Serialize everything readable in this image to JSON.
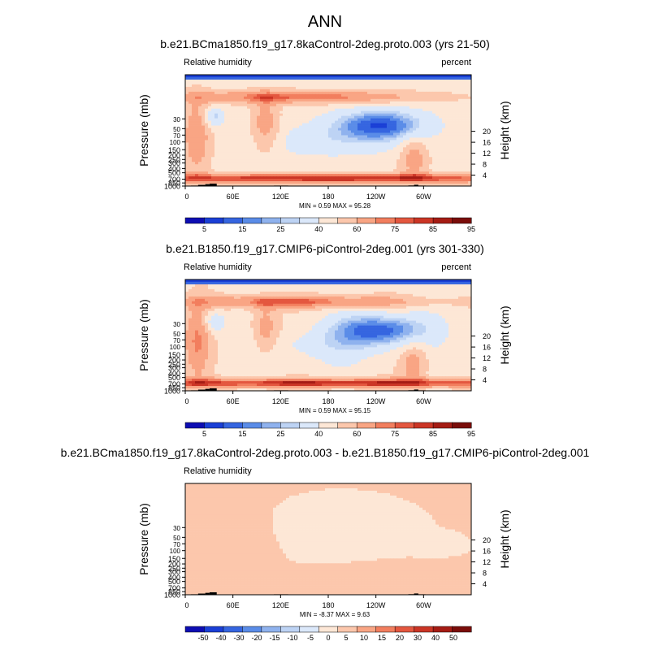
{
  "chart_data": {
    "title": "ANN",
    "colors": {
      "abs": [
        "#0d0db3",
        "#1a3fd6",
        "#3565e0",
        "#5a8ce8",
        "#8fb2ee",
        "#bdd3f4",
        "#dbe8fa",
        "#fde7d6",
        "#fcc7ac",
        "#f9a584",
        "#f27e5e",
        "#e4573f",
        "#cb3525",
        "#a51c14",
        "#7a0d0a"
      ],
      "diff": [
        "#0d0db3",
        "#1a3fd6",
        "#3565e0",
        "#5a8ce8",
        "#8fb2ee",
        "#bdd3f4",
        "#dbe8fa",
        "#fde7d6",
        "#fcc7ac",
        "#f9a584",
        "#f27e5e",
        "#e4573f",
        "#cb3525",
        "#a51c14",
        "#7a0d0a"
      ]
    },
    "panels": [
      {
        "type": "contour",
        "subtitle": "b.e21.BCma1850.f19_g17.8kaControl-2deg.proto.003 (yrs 21-50)",
        "left_label": "Relative humidity",
        "right_label": "percent",
        "ylabel": "Pressure (mb)",
        "y2label": "Height (km)",
        "pressure_ticks": [
          "1000",
          "850",
          "700",
          "500",
          "400",
          "300",
          "250",
          "200",
          "150",
          "100",
          "70",
          "50",
          "30"
        ],
        "height_ticks": [
          "4",
          "8",
          "12",
          "16",
          "20"
        ],
        "x_ticks": [
          "0",
          "60E",
          "120E",
          "180",
          "120W",
          "60W"
        ],
        "min_label": "MIN =",
        "min_value": "0.59",
        "max_label": "MAX =",
        "max_value": "95.28",
        "colorbar_labels": [
          "5",
          "15",
          "25",
          "40",
          "60",
          "75",
          "85",
          "95"
        ],
        "kind": "abs",
        "variant": 0
      },
      {
        "type": "contour",
        "subtitle": "b.e21.B1850.f19_g17.CMIP6-piControl-2deg.001 (yrs 301-330)",
        "left_label": "Relative humidity",
        "right_label": "percent",
        "ylabel": "Pressure (mb)",
        "y2label": "Height (km)",
        "pressure_ticks": [
          "1000",
          "850",
          "700",
          "500",
          "400",
          "300",
          "250",
          "200",
          "150",
          "100",
          "70",
          "50",
          "30"
        ],
        "height_ticks": [
          "4",
          "8",
          "12",
          "16",
          "20"
        ],
        "x_ticks": [
          "0",
          "60E",
          "120E",
          "180",
          "120W",
          "60W"
        ],
        "min_label": "MIN =",
        "min_value": "0.59",
        "max_label": "MAX =",
        "max_value": "95.15",
        "colorbar_labels": [
          "5",
          "15",
          "25",
          "40",
          "60",
          "75",
          "85",
          "95"
        ],
        "kind": "abs",
        "variant": 1
      },
      {
        "type": "contour",
        "subtitle": "b.e21.BCma1850.f19_g17.8kaControl-2deg.proto.003 - b.e21.B1850.f19_g17.CMIP6-piControl-2deg.001",
        "left_label": "Relative humidity",
        "right_label": "",
        "ylabel": "Pressure (mb)",
        "y2label": "Height (km)",
        "pressure_ticks": [
          "1000",
          "850",
          "700",
          "500",
          "400",
          "300",
          "250",
          "200",
          "150",
          "100",
          "70",
          "50",
          "30"
        ],
        "height_ticks": [
          "4",
          "8",
          "12",
          "16",
          "20"
        ],
        "x_ticks": [
          "0",
          "60E",
          "120E",
          "180",
          "120W",
          "60W"
        ],
        "min_label": "MIN =",
        "min_value": "-8.37",
        "max_label": "MAX =",
        "max_value": "9.63",
        "colorbar_labels": [
          "-50",
          "-40",
          "-30",
          "-20",
          "-15",
          "-10",
          "-5",
          "0",
          "5",
          "10",
          "15",
          "20",
          "30",
          "40",
          "50"
        ],
        "kind": "diff",
        "variant": 2
      }
    ]
  }
}
